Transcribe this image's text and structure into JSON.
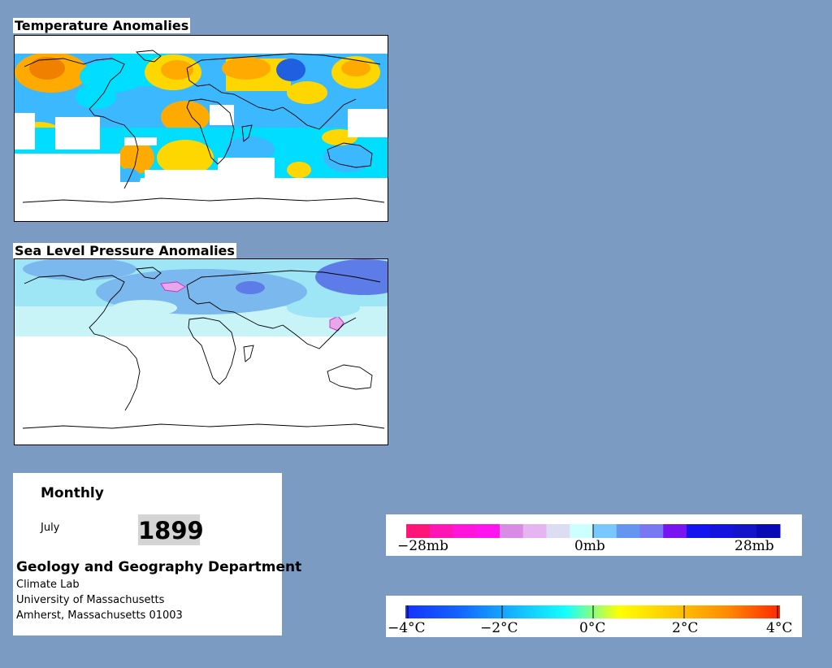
{
  "panels": {
    "temperature": {
      "title": "Temperature Anomalies"
    },
    "pressure": {
      "title": "Sea Level Pressure Anomalies"
    }
  },
  "info": {
    "frequency": "Monthly",
    "month": "July",
    "year": "1899",
    "department": "Geology and Geography Department",
    "lab": "Climate Lab",
    "university": "University of Massachusetts",
    "address": "Amherst, Massachusetts 01003"
  },
  "pressure_legend": {
    "labels": [
      "−28mb",
      "0mb",
      "28mb"
    ],
    "colors": [
      "#ff1477",
      "#ff14b4",
      "#ff14dc",
      "#ff14f0",
      "#d98ce6",
      "#e6b4f0",
      "#dcdcf5",
      "#ccffff",
      "#78c8ff",
      "#6496f0",
      "#7878f0",
      "#7814f0",
      "#1414f0",
      "#1414dc",
      "#1414c8",
      "#0a0ab4"
    ]
  },
  "temperature_legend": {
    "labels": [
      "−4°C",
      "−2°C",
      "0°C",
      "2°C",
      "4°C"
    ],
    "gradient": [
      "#1432ff",
      "#1464ff",
      "#14b4ff",
      "#14ffff",
      "#ffff00",
      "#ffc800",
      "#ff8c00",
      "#ff2800"
    ]
  },
  "map_colors": {
    "warm_light": "#ffd700",
    "warm": "#ffaa00",
    "warm_strong": "#f08000",
    "cool_light": "#00ddff",
    "cool": "#3cb8ff",
    "cool_strong": "#2060e0",
    "slp_pale": "#c8f4f8",
    "slp_light": "#9ee6f5",
    "slp_mid": "#7ab8ee",
    "slp_dark": "#5e7ce8",
    "slp_pink": "#e6a8e8"
  }
}
